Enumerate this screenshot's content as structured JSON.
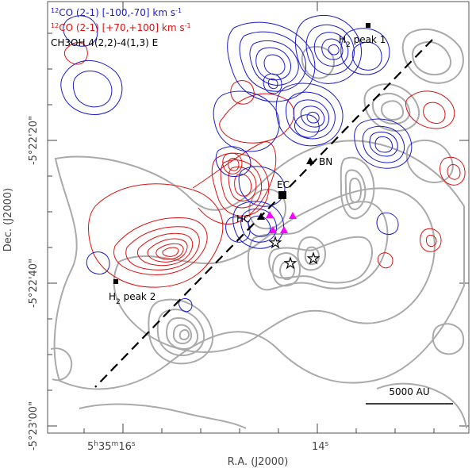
{
  "chart_data": {
    "type": "contour",
    "title": "",
    "xlabel": "R.A. (J2000)",
    "ylabel": "Dec. (J2000)",
    "x_ticks": [
      {
        "h": "5",
        "m": "35",
        "s": "16",
        "label_ticks": "5h35m16s"
      },
      {
        "s": "14",
        "label_ticks": "14s"
      }
    ],
    "y_ticks": [
      "-5°22'20\"",
      "-5°22'40\"",
      "-5°23'00\""
    ],
    "legend": [
      {
        "label_iso": "12",
        "label_text": "CO (2-1) [-100,-70] km s",
        "label_sup": "-1",
        "color": "#1a1acc"
      },
      {
        "label_iso": "12",
        "label_text": "CO (2-1) [+70,+100] km s",
        "label_sup": "-1",
        "color": "#dd1111"
      },
      {
        "label_text": "CH3OH 4(2,2)-4(1,3) E",
        "color": "#000000"
      }
    ],
    "series": [
      {
        "name": "12CO blue [-100,-70]",
        "color": "#1a1acc"
      },
      {
        "name": "12CO red [+70,+100]",
        "color": "#dd1111"
      },
      {
        "name": "CH3OH 4(2,2)-4(1,3) E",
        "color": "#aaaaaa"
      }
    ],
    "sources": [
      {
        "name": "BN",
        "symbol": "triangle"
      },
      {
        "name": "EC",
        "symbol": "square"
      },
      {
        "name": "HC",
        "symbol": "triangle"
      },
      {
        "name": "H2 peak 1",
        "label_main": "H",
        "label_sub": "2",
        "label_rest": " peak 1",
        "symbol": "square"
      },
      {
        "name": "H2 peak 2",
        "label_main": "H",
        "label_sub": "2",
        "label_rest": " peak 2",
        "symbol": "square"
      }
    ],
    "extra_markers": [
      {
        "type": "magenta-triangles",
        "count": 4
      },
      {
        "type": "star",
        "count": 3
      }
    ],
    "outflow_axis": "dashed",
    "scale_bar_label": "5000 AU",
    "colors": {
      "blue": "#1a1acc",
      "red": "#dd1111",
      "gray": "#aaaaaa",
      "magenta": "#ff00ff"
    }
  }
}
